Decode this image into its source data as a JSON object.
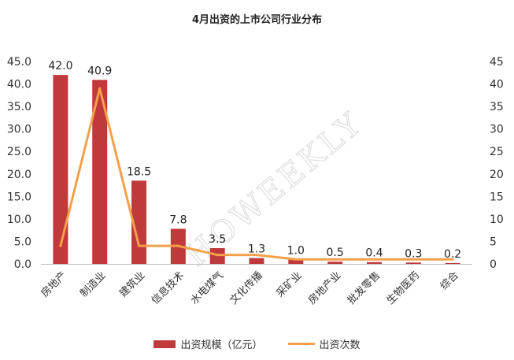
{
  "chart_data": {
    "type": "bar",
    "title": "4月出资的上市公司行业分布",
    "categories": [
      "房地产",
      "制造业",
      "建筑业",
      "信息技术",
      "水电煤气",
      "文化传播",
      "采矿业",
      "房地产业",
      "批发零售",
      "生物医药",
      "综合"
    ],
    "series": [
      {
        "name": "出资规模（亿元）",
        "type": "bar",
        "axis": "left",
        "values": [
          42.0,
          40.9,
          18.5,
          7.8,
          3.5,
          1.3,
          1.0,
          0.5,
          0.4,
          0.3,
          0.2
        ],
        "labels": [
          "42.0",
          "40.9",
          "18.5",
          "7.8",
          "3.5",
          "1.3",
          "1.0",
          "0.5",
          "0.4",
          "0.3",
          "0.2"
        ]
      },
      {
        "name": "出资次数",
        "type": "line",
        "axis": "right",
        "values": [
          4,
          39,
          4,
          4,
          2,
          2,
          1,
          1,
          1,
          1,
          1
        ]
      }
    ],
    "ylim_left": [
      0,
      45
    ],
    "ylim_right": [
      0,
      45
    ],
    "y_left_ticks": [
      "0.0",
      "5.0",
      "10.0",
      "15.0",
      "20.0",
      "25.0",
      "30.0",
      "35.0",
      "40.0",
      "45.0"
    ],
    "y_right_ticks": [
      "0",
      "5",
      "10",
      "15",
      "20",
      "25",
      "30",
      "35",
      "40",
      "45"
    ],
    "legend_position": "bottom",
    "grid": false,
    "colors": {
      "bar": "#c0393b",
      "line": "#f5a04a",
      "text": "#333333",
      "axis": "#bfbfbf"
    },
    "watermark": "HOWEEKLY"
  }
}
